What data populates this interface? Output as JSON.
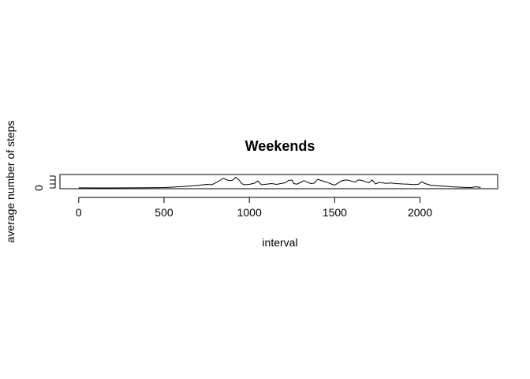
{
  "chart_data": {
    "type": "line",
    "title": "Weekends",
    "xlabel": "interval",
    "ylabel": "average number of steps",
    "xlim": [
      -110,
      2455
    ],
    "ylim": [
      -10,
      170
    ],
    "x_ticks": [
      0,
      500,
      1000,
      1500,
      2000
    ],
    "y_ticks": [
      0
    ],
    "y_minor_ticks": [
      50,
      100,
      150
    ],
    "grid": false,
    "series": [
      {
        "points": [
          [
            0,
            1
          ],
          [
            100,
            0
          ],
          [
            200,
            0
          ],
          [
            300,
            1
          ],
          [
            400,
            3
          ],
          [
            450,
            4
          ],
          [
            500,
            5
          ],
          [
            550,
            10
          ],
          [
            600,
            16
          ],
          [
            650,
            24
          ],
          [
            700,
            33
          ],
          [
            750,
            45
          ],
          [
            780,
            40
          ],
          [
            800,
            62
          ],
          [
            820,
            85
          ],
          [
            845,
            120
          ],
          [
            860,
            110
          ],
          [
            880,
            92
          ],
          [
            900,
            95
          ],
          [
            920,
            135
          ],
          [
            940,
            100
          ],
          [
            955,
            55
          ],
          [
            970,
            40
          ],
          [
            1000,
            45
          ],
          [
            1030,
            60
          ],
          [
            1050,
            88
          ],
          [
            1070,
            40
          ],
          [
            1100,
            48
          ],
          [
            1130,
            55
          ],
          [
            1160,
            45
          ],
          [
            1190,
            58
          ],
          [
            1210,
            65
          ],
          [
            1230,
            95
          ],
          [
            1250,
            100
          ],
          [
            1260,
            55
          ],
          [
            1280,
            48
          ],
          [
            1300,
            70
          ],
          [
            1320,
            92
          ],
          [
            1340,
            72
          ],
          [
            1360,
            55
          ],
          [
            1380,
            60
          ],
          [
            1400,
            108
          ],
          [
            1420,
            95
          ],
          [
            1440,
            80
          ],
          [
            1460,
            68
          ],
          [
            1480,
            50
          ],
          [
            1500,
            35
          ],
          [
            1520,
            62
          ],
          [
            1540,
            90
          ],
          [
            1560,
            100
          ],
          [
            1580,
            98
          ],
          [
            1600,
            85
          ],
          [
            1620,
            75
          ],
          [
            1640,
            102
          ],
          [
            1660,
            95
          ],
          [
            1680,
            78
          ],
          [
            1700,
            65
          ],
          [
            1720,
            100
          ],
          [
            1740,
            50
          ],
          [
            1760,
            70
          ],
          [
            1780,
            65
          ],
          [
            1800,
            58
          ],
          [
            1830,
            62
          ],
          [
            1860,
            55
          ],
          [
            1900,
            50
          ],
          [
            1930,
            48
          ],
          [
            1960,
            42
          ],
          [
            1990,
            45
          ],
          [
            2010,
            78
          ],
          [
            2030,
            55
          ],
          [
            2060,
            35
          ],
          [
            2100,
            28
          ],
          [
            2150,
            20
          ],
          [
            2200,
            12
          ],
          [
            2250,
            8
          ],
          [
            2300,
            5
          ],
          [
            2330,
            15
          ],
          [
            2355,
            5
          ]
        ]
      }
    ]
  }
}
